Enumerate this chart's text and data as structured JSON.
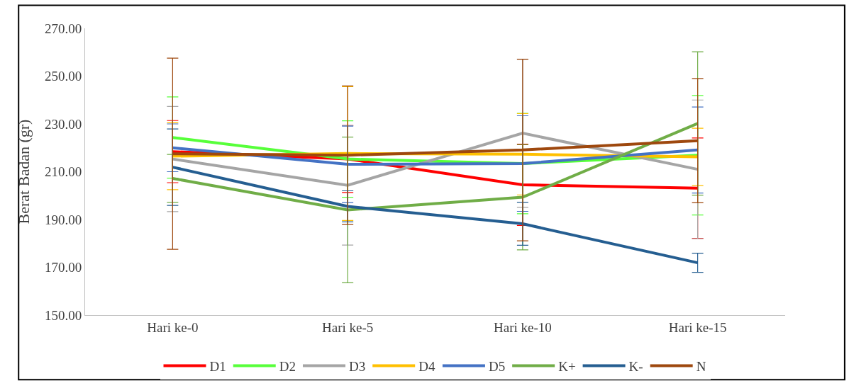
{
  "chart_data": {
    "type": "line",
    "ylabel": "Berat Badan (gr)",
    "categories": [
      "Hari ke-0",
      "Hari ke-5",
      "Hari ke-10",
      "Hari ke-15"
    ],
    "ylim": [
      150,
      270
    ],
    "yticks": [
      {
        "value": 150,
        "label": "150.00"
      },
      {
        "value": 170,
        "label": "170.00"
      },
      {
        "value": 190,
        "label": "190.00"
      },
      {
        "value": 210,
        "label": "210.00"
      },
      {
        "value": 230,
        "label": "230.00"
      },
      {
        "value": 250,
        "label": "250.00"
      },
      {
        "value": 270,
        "label": "270.00"
      }
    ],
    "grid": false,
    "legend": "bottom",
    "marker": "none",
    "line_style": "solid",
    "series": [
      {
        "name": "D1",
        "color": "#ff0000",
        "values": [
          218.4,
          215.3,
          204.5,
          203.1
        ],
        "errors": [
          13,
          14,
          17,
          21
        ]
      },
      {
        "name": "D2",
        "color": "#57ff3a",
        "values": [
          224.3,
          215.3,
          213.4,
          216.9
        ],
        "errors": [
          17,
          16,
          21,
          25
        ]
      },
      {
        "name": "D3",
        "color": "#a5a5a5",
        "values": [
          215.3,
          204.3,
          226.1,
          211.0
        ],
        "errors": [
          22,
          25,
          31,
          29
        ]
      },
      {
        "name": "D4",
        "color": "#ffc000",
        "values": [
          216.5,
          217.6,
          217.3,
          216.2
        ],
        "errors": [
          14,
          28,
          17,
          12
        ]
      },
      {
        "name": "D5",
        "color": "#4472c4",
        "values": [
          220.0,
          213.1,
          213.4,
          219.1
        ],
        "errors": [
          10,
          16,
          20,
          18
        ]
      },
      {
        "name": "K+",
        "color": "#70ad47",
        "values": [
          207.2,
          194.0,
          199.3,
          230.2
        ],
        "errors": [
          10,
          30.5,
          22,
          30
        ]
      },
      {
        "name": "K-",
        "color": "#255e91",
        "values": [
          211.9,
          195.5,
          188.2,
          171.9
        ],
        "errors": [
          16,
          6.5,
          9,
          4
        ]
      },
      {
        "name": "N",
        "color": "#9e480e",
        "values": [
          217.5,
          216.9,
          219.1,
          223.0
        ],
        "errors": [
          40,
          29,
          38,
          26
        ]
      }
    ]
  }
}
